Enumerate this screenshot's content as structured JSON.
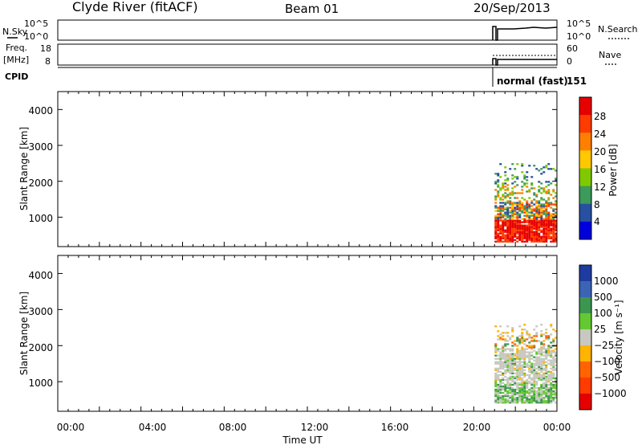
{
  "header": {
    "station": "Clyde River (fitACF)",
    "beam": "Beam 01",
    "date": "20/Sep/2013"
  },
  "params": {
    "nsky_label": "N.Sky",
    "nsky_ticks": [
      "10^5",
      "10^0"
    ],
    "nsearch_label": "N.Search",
    "nsearch_ticks": [
      "10^5",
      "10^0"
    ],
    "freq_label": "Freq.",
    "freq_unit": "[MHz]",
    "freq_ticks": [
      "18",
      "8"
    ],
    "nave_label": "Nave",
    "nave_ticks": [
      "60",
      "0"
    ],
    "cpid_label": "CPID",
    "cpid_mode": "normal (fast)",
    "cpid_value": "151"
  },
  "chart_data": [
    {
      "type": "heatmap",
      "panel": "power",
      "ylabel": "Slant Range [km]",
      "yticks": [
        "4000",
        "3000",
        "2000",
        "1000"
      ],
      "colorbar_label": "Power [dB]",
      "colorbar_ticks": [
        "28",
        "24",
        "20",
        "16",
        "12",
        "8",
        "4"
      ],
      "colorbar_colors": [
        "#e60000",
        "#ff3c00",
        "#ff8000",
        "#ffc800",
        "#80c800",
        "#3c9a5a",
        "#2850a0",
        "#0000dc"
      ],
      "data_window": {
        "start_hour": 21.0,
        "end_hour": 24.0
      },
      "range_bands_km": [
        {
          "range": [
            400,
            900
          ],
          "dominant_power_db": 28
        },
        {
          "range": [
            900,
            1400
          ],
          "dominant_power_db": 24
        },
        {
          "range": [
            1500,
            1800
          ],
          "dominant_power_db": 12
        },
        {
          "range": [
            2000,
            2500
          ],
          "dominant_power_db": 6
        }
      ]
    },
    {
      "type": "heatmap",
      "panel": "velocity",
      "ylabel": "Slant Range [km]",
      "yticks": [
        "4000",
        "3000",
        "2000",
        "1000"
      ],
      "colorbar_label": "Velocity [m s⁻¹]",
      "colorbar_ticks": [
        "1000",
        "500",
        "100",
        "25",
        "−25",
        "−100",
        "−500",
        "−1000"
      ],
      "colorbar_colors": [
        "#1e3ca0",
        "#3c64b4",
        "#3c9650",
        "#64c832",
        "#c8c8c0",
        "#ffb400",
        "#ff6400",
        "#ff3c00",
        "#e60000"
      ],
      "data_window": {
        "start_hour": 21.0,
        "end_hour": 24.0
      },
      "range_bands_km": [
        {
          "range": [
            500,
            900
          ],
          "dominant_velocity_ms": 300
        },
        {
          "range": [
            900,
            2300
          ],
          "dominant_velocity_ms": 0
        },
        {
          "range": [
            1900,
            2200
          ],
          "dominant_velocity_ms": -300
        }
      ]
    }
  ],
  "x_axis": {
    "label": "Time UT",
    "range_hours": [
      0,
      24
    ],
    "tick_labels": [
      "00:00",
      "04:00",
      "08:00",
      "12:00",
      "16:00",
      "20:00",
      "00:00"
    ]
  },
  "y_axis": {
    "range_km": [
      180,
      4500
    ]
  }
}
